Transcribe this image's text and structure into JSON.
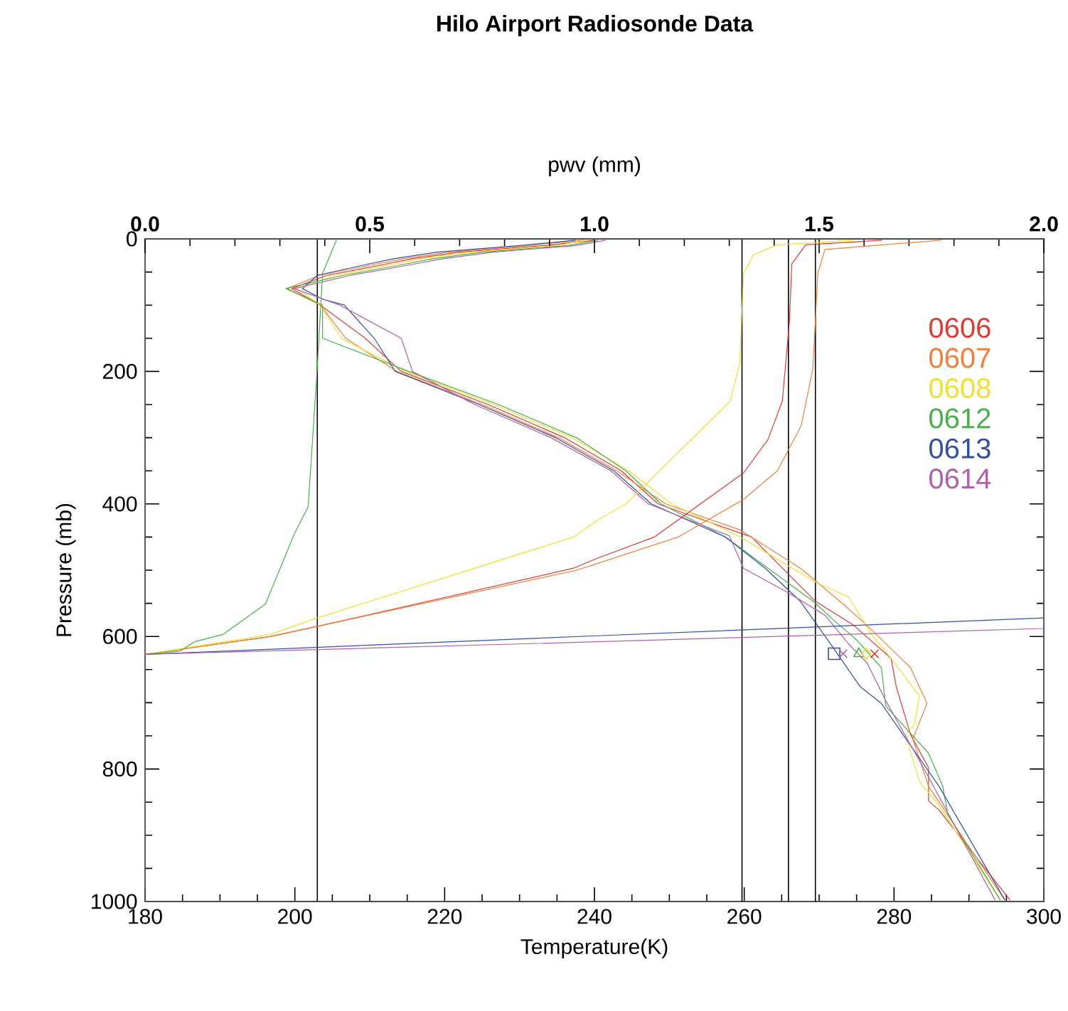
{
  "chart_data": {
    "type": "line",
    "title": "Hilo Airport Radiosonde Data",
    "xlabel": "Temperature(K)",
    "ylabel": "Pressure (mb)",
    "x2label": "pwv (mm)",
    "xlim": [
      180,
      300
    ],
    "xticks": [
      180,
      200,
      220,
      240,
      260,
      280,
      300
    ],
    "x2lim": [
      0,
      2.0
    ],
    "x2ticks": [
      {
        "value": 0,
        "label": "0.0"
      },
      {
        "value": 0.5,
        "label": "0.5"
      },
      {
        "value": 1.0,
        "label": "1.0"
      },
      {
        "value": 1.5,
        "label": "1.5"
      },
      {
        "value": 2.0,
        "label": "2.0"
      }
    ],
    "ylim": [
      1000,
      0
    ],
    "yticks": [
      0,
      200,
      400,
      600,
      800,
      1000
    ],
    "legend": "top right",
    "marker": "none",
    "line_style": "solid",
    "ref_lines": [
      {
        "axis": "x",
        "value": 203.0,
        "color": "#000000"
      },
      {
        "axis": "x",
        "value": 259.7,
        "color": "#000000"
      },
      {
        "axis": "x",
        "value": 265.9,
        "color": "#000000"
      },
      {
        "axis": "x",
        "value": 269.5,
        "color": "#000000"
      }
    ],
    "series": [
      {
        "name": "0606",
        "type": "line",
        "color": "#e03a30",
        "x": [
          240,
          233.4,
          222,
          215.7,
          211.3,
          204.3,
          199.6,
          203.4,
          209.4,
          214.2,
          225.8,
          236,
          243.6,
          248.5,
          261,
          269.5,
          274.6,
          279.6,
          280.3,
          282.2,
          284.6,
          284.6,
          286,
          295.5
        ],
        "values": [
          2,
          10,
          20,
          30,
          40,
          55,
          75,
          100,
          150,
          200,
          250,
          300,
          350,
          400,
          450,
          547,
          583,
          633,
          676,
          748,
          798,
          848,
          862,
          998
        ]
      },
      {
        "name": "0607",
        "type": "line",
        "color": "#f08038",
        "x": [
          238.5,
          231.5,
          220.5,
          214.5,
          210,
          203.3,
          199.0,
          203.4,
          206.8,
          213.6,
          225.0,
          235.2,
          243,
          249.5,
          259.4,
          267.5,
          273.2,
          277,
          282.2,
          284.4,
          282.5,
          284.6,
          294.8
        ],
        "values": [
          2,
          10,
          20,
          30,
          40,
          55,
          75,
          100,
          150,
          200,
          250,
          300,
          350,
          400,
          439,
          497,
          551,
          590,
          647,
          701,
          755,
          826,
          998
        ]
      },
      {
        "name": "0608",
        "type": "line",
        "color": "#f0e030",
        "x": [
          239,
          235,
          223.5,
          217,
          212.5,
          205.5,
          200.3,
          203.4,
          206.2,
          214.8,
          226.6,
          237,
          244.6,
          250.3,
          259.5,
          269.5,
          273.9,
          277,
          279.6,
          283.4,
          282.7,
          281.5,
          283.4,
          286,
          294.2
        ],
        "values": [
          2,
          10,
          20,
          30,
          40,
          55,
          75,
          100,
          150,
          200,
          250,
          300,
          350,
          400,
          450,
          518,
          540,
          597,
          633,
          690,
          733,
          748,
          819,
          855,
          998
        ]
      },
      {
        "name": "0612",
        "type": "line",
        "color": "#48b048",
        "x": [
          240.5,
          236.5,
          225,
          218.5,
          213.8,
          206.5,
          198.8,
          203.7,
          203.7,
          215.2,
          227.2,
          237.6,
          244.2,
          248.9,
          257.5,
          269.2,
          272,
          274.9,
          278.3,
          278.9,
          284.6,
          286.5,
          287.2,
          294.2
        ],
        "values": [
          2,
          10,
          20,
          30,
          40,
          55,
          75,
          100,
          150,
          200,
          250,
          300,
          350,
          400,
          450,
          547,
          576,
          604,
          647,
          705,
          776,
          826,
          869,
          998
        ]
      },
      {
        "name": "0613",
        "type": "line",
        "color": "#3450a0",
        "x": [
          237.5,
          230,
          219,
          213.2,
          209,
          203,
          201,
          203.7,
          206.6,
          210.6,
          213.4,
          224.6,
          234.8,
          242.6,
          247.6,
          257.5,
          262.8,
          267.5,
          272,
          275.5,
          278.3,
          286,
          294.8
        ],
        "values": [
          2,
          10,
          20,
          30,
          40,
          55,
          75,
          91,
          100,
          150,
          200,
          250,
          300,
          350,
          400,
          450,
          497,
          547,
          619,
          676,
          701,
          826,
          998
        ]
      },
      {
        "name": "0614",
        "type": "line",
        "color": "#b060a8",
        "x": [
          241.5,
          237.5,
          226.5,
          219.8,
          215,
          207.5,
          199.9,
          206,
          214.2,
          215.7,
          224.0,
          234.2,
          242.2,
          247.2,
          258,
          259.9,
          265.7,
          270.8,
          273.9,
          276.4,
          278.9,
          284.6,
          293.5
        ],
        "values": [
          2,
          10,
          20,
          30,
          40,
          55,
          75,
          100,
          150,
          200,
          250,
          300,
          350,
          400,
          448,
          497,
          533,
          568,
          611,
          640,
          697,
          812,
          998
        ]
      },
      {
        "type": "line",
        "axis": "x2",
        "color": "#e03a30",
        "x": [
          0,
          0.28,
          0.395,
          0.953,
          1.006,
          1.133,
          1.332,
          1.386,
          1.418,
          1.434,
          1.439,
          1.47,
          1.64
        ],
        "values": [
          627,
          600,
          583,
          497,
          482,
          450,
          353,
          303,
          245,
          124,
          38,
          9,
          2
        ]
      },
      {
        "type": "line",
        "axis": "x2",
        "color": "#f08038",
        "x": [
          0,
          0.28,
          0.395,
          0.96,
          1.006,
          1.186,
          1.332,
          1.407,
          1.46,
          1.486,
          1.497,
          1.513,
          1.771
        ],
        "values": [
          627,
          600,
          583,
          500,
          490,
          450,
          393,
          350,
          282,
          196,
          52,
          16,
          2
        ]
      },
      {
        "type": "line",
        "axis": "x2",
        "color": "#f0e030",
        "x": [
          0,
          0.278,
          0.383,
          0.953,
          1.006,
          1.07,
          1.302,
          1.323,
          1.332,
          1.354,
          1.407,
          1.576
        ],
        "values": [
          627,
          597,
          572,
          450,
          425,
          400,
          245,
          189,
          52,
          24,
          9,
          2
        ]
      },
      {
        "type": "line",
        "axis": "x2",
        "color": "#48b048",
        "x": [
          0,
          0.078,
          0.11,
          0.173,
          0.268,
          0.331,
          0.363,
          0.383,
          0.395,
          0.426
        ],
        "values": [
          627,
          622,
          608,
          597,
          551,
          447,
          404,
          196,
          52,
          2
        ]
      },
      {
        "type": "line",
        "axis": "x2",
        "color": "#3450a0",
        "x": [
          0,
          1.006,
          2.0
        ],
        "values": [
          627,
          599,
          572
        ]
      },
      {
        "type": "line",
        "axis": "x2",
        "color": "#b060a8",
        "x": [
          0,
          1.006,
          2.0
        ],
        "values": [
          627,
          608,
          588
        ]
      },
      {
        "type": "scatter",
        "marker": "square",
        "color": "#3450a0",
        "x": [
          272.0
        ],
        "values": [
          626
        ]
      },
      {
        "type": "scatter",
        "marker": "cross",
        "color": "#b060a8",
        "x": [
          273.2
        ],
        "values": [
          626
        ]
      },
      {
        "type": "scatter",
        "marker": "triangle",
        "color": "#48b048",
        "x": [
          275.3
        ],
        "values": [
          626
        ]
      },
      {
        "type": "scatter",
        "marker": "diamond",
        "color": "#f0e030",
        "x": [
          276.3
        ],
        "values": [
          626
        ]
      },
      {
        "type": "scatter",
        "marker": "cross",
        "color": "#e03a30",
        "x": [
          277.4
        ],
        "values": [
          626
        ]
      }
    ]
  }
}
